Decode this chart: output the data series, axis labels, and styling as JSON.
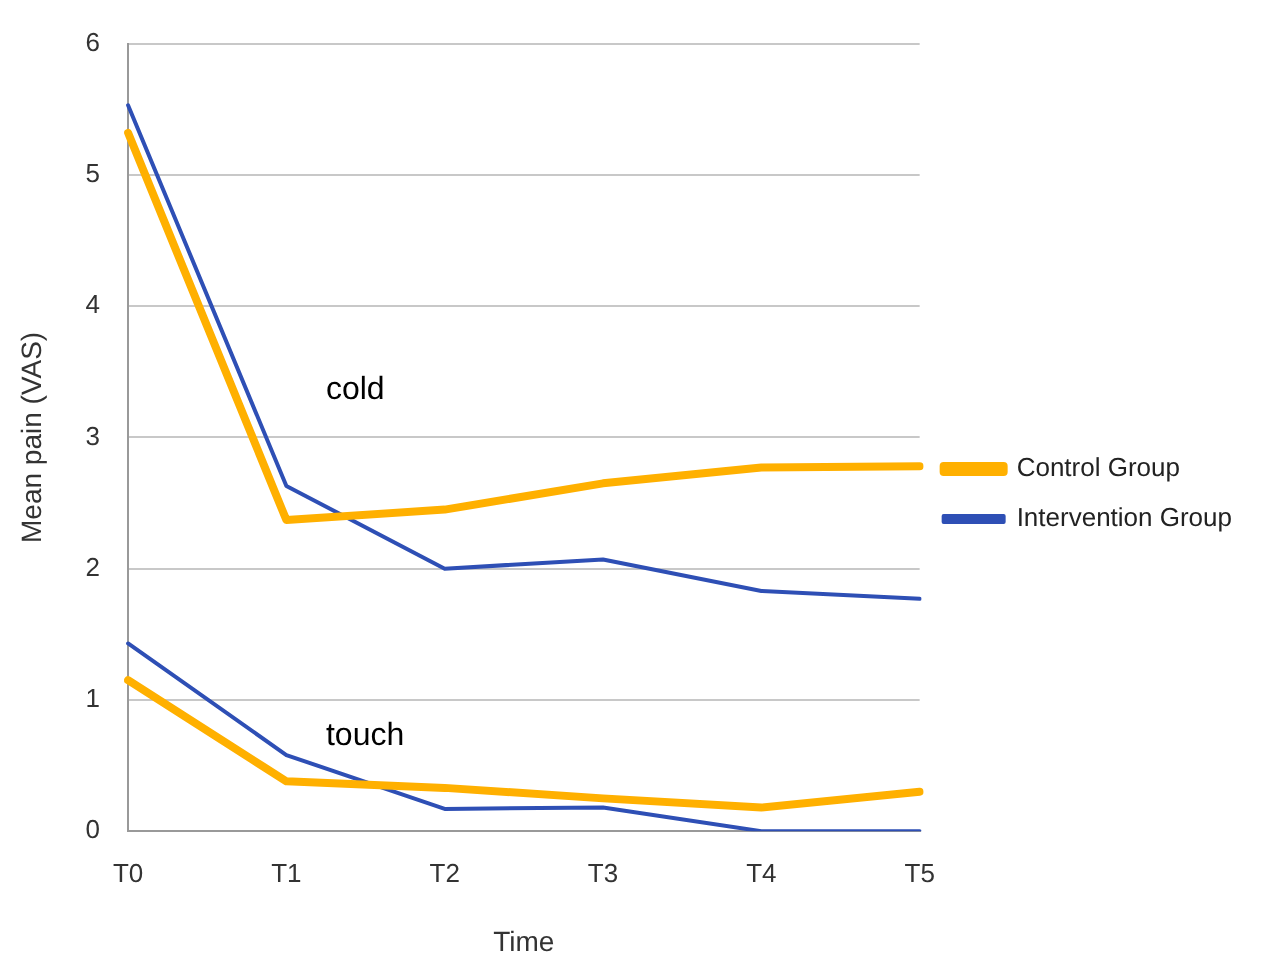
{
  "chart_data": {
    "type": "line",
    "xlabel": "Time",
    "ylabel": "Mean pain (VAS)",
    "categories": [
      "T0",
      "T1",
      "T2",
      "T3",
      "T4",
      "T5"
    ],
    "series": [
      {
        "name": "Control Group",
        "color": "#ffb000",
        "values": [
          5.32,
          2.37,
          2.45,
          2.65,
          2.77,
          2.78
        ]
      },
      {
        "name": "Intervention Group",
        "color": "#2e4fb5",
        "values": [
          5.53,
          2.63,
          2.0,
          2.07,
          1.83,
          1.77
        ]
      },
      {
        "color": "#ffb000",
        "values": [
          1.15,
          0.38,
          0.33,
          0.25,
          0.18,
          0.3
        ]
      },
      {
        "color": "#2e4fb5",
        "values": [
          1.43,
          0.58,
          0.17,
          0.18,
          0.0,
          0.0
        ]
      }
    ],
    "ylim": [
      0,
      6
    ],
    "yticks": [
      0,
      1,
      2,
      3,
      4,
      5,
      6
    ],
    "grid": "y",
    "legend": "right",
    "marker": "none",
    "line_style": "solid",
    "annotations": [
      "cold",
      "touch"
    ]
  }
}
